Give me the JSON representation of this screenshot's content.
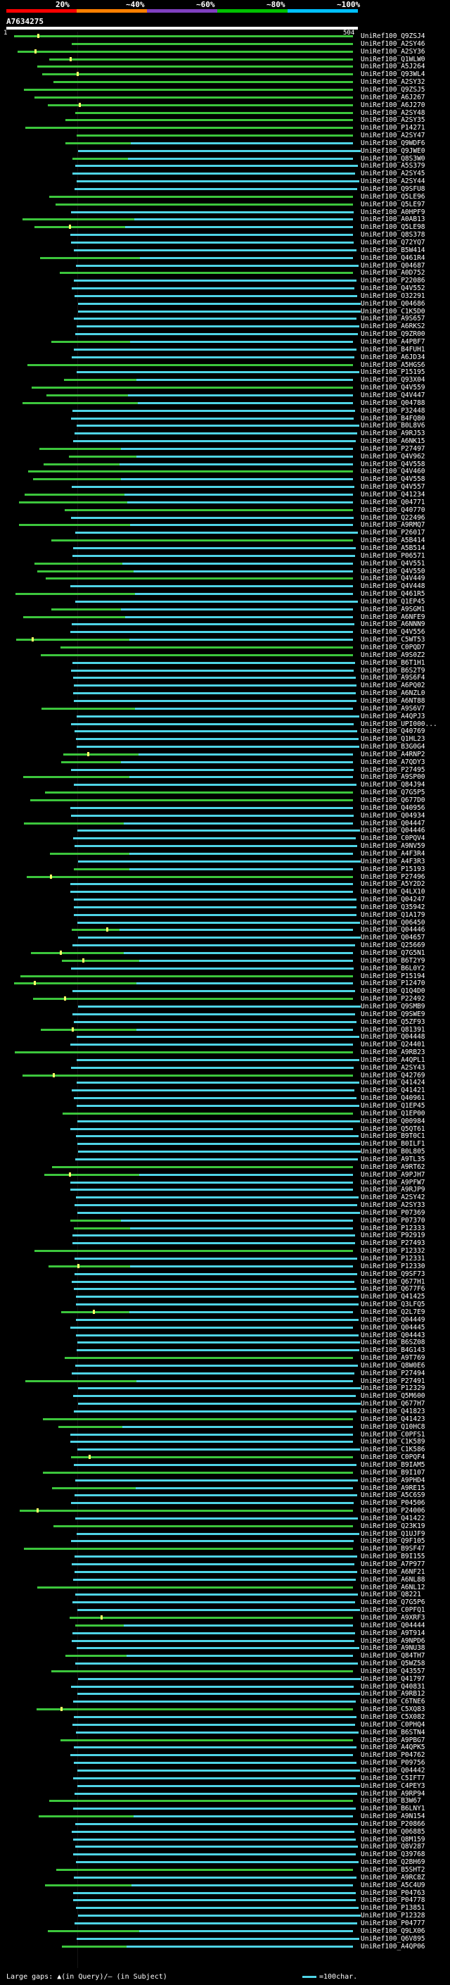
{
  "header": {
    "labels": [
      "20%",
      "~40%",
      "~60%",
      "~80%",
      "~100%"
    ],
    "colors": [
      "#ff0000",
      "#ff8000",
      "#8040c0",
      "#00c000",
      "#00c0ff"
    ]
  },
  "title": "A7634275",
  "scale": {
    "start": "1",
    "end": "504"
  },
  "colors": {
    "cyan": "#4fd4e6",
    "green": "#3cc63c",
    "darkgreen": "#2a8c2a"
  },
  "hits": [
    "UniRef100_Q9ZSJ4",
    "UniRef100_A2SY46",
    "UniRef100_A2SY36",
    "UniRef100_Q1WLW0",
    "UniRef100_A5J264",
    "UniRef100_Q93WL4",
    "UniRef100_A2SY32",
    "UniRef100_Q9ZSJ5",
    "UniRef100_A6J267",
    "UniRef100_A6J270",
    "UniRef100_A2SY48",
    "UniRef100_A2SY35",
    "UniRef100_P14271",
    "UniRef100_A2SY47",
    "UniRef100_Q9WDF6",
    "UniRef100_Q9JWE0",
    "UniRef100_Q8S3W0",
    "UniRef100_A5S379",
    "UniRef100_A2SY45",
    "UniRef100_A2SY44",
    "UniRef100_Q9SFU8",
    "UniRef100_Q5LE96",
    "UniRef100_Q5LE97",
    "UniRef100_A0HPF9",
    "UniRef100_A0AB13",
    "UniRef100_Q5LE98",
    "UniRef100_Q8S378",
    "UniRef100_Q72YQ7",
    "UniRef100_B5W414",
    "UniRef100_Q461R4",
    "UniRef100_Q04687",
    "UniRef100_A0D752",
    "UniRef100_P22086",
    "UniRef100_Q4V552",
    "UniRef100_O32291",
    "UniRef100_Q04686",
    "UniRef100_C1K5D0",
    "UniRef100_A9S657",
    "UniRef100_A6RKS2",
    "UniRef100_Q9ZR00",
    "UniRef100_A4PBF7",
    "UniRef100_B4FUH1",
    "UniRef100_A6JD34",
    "UniRef100_A5HGS6",
    "UniRef100_P15195",
    "UniRef100_Q93X04",
    "UniRef100_Q4V559",
    "UniRef100_Q4V447",
    "UniRef100_Q04788",
    "UniRef100_P32448",
    "UniRef100_B4FQ80",
    "UniRef100_B0L8V6",
    "UniRef100_A9RJ53",
    "UniRef100_A6NK15",
    "UniRef100_P27497",
    "UniRef100_Q4V962",
    "UniRef100_Q4V558",
    "UniRef100_Q4V460",
    "UniRef100_Q4V558",
    "UniRef100_Q4V557",
    "UniRef100_Q41234",
    "UniRef100_Q04771",
    "UniRef100_Q40770",
    "UniRef100_Q22496",
    "UniRef100_A9RMQ7",
    "UniRef100_P26017",
    "UniRef100_A5B414",
    "UniRef100_A5B514",
    "UniRef100_P06571",
    "UniRef100_Q4V551",
    "UniRef100_Q4V550",
    "UniRef100_Q4V449",
    "UniRef100_Q4V448",
    "UniRef100_Q461R5",
    "UniRef100_Q1EP45",
    "UniRef100_A9SGM1",
    "UniRef100_A6NFE9",
    "UniRef100_A6NNN9",
    "UniRef100_Q4V556",
    "UniRef100_C5WT53",
    "UniRef100_C0PQD7",
    "UniRef100_A9S0Z2",
    "UniRef100_B6T1H1",
    "UniRef100_B6S2T9",
    "UniRef100_A9S6F4",
    "UniRef100_A6PQ02",
    "UniRef100_A6NZL0",
    "UniRef100_A6NT88",
    "UniRef100_A9S6V7",
    "UniRef100_A4QPJ3",
    "UniRef100_UPI000...",
    "UniRef100_Q40769",
    "UniRef100_Q1HL23",
    "UniRef100_B3G0G4",
    "UniRef100_A4RNP2",
    "UniRef100_A7QDY3",
    "UniRef100_P27495",
    "UniRef100_A9SP00",
    "UniRef100_Q84J94",
    "UniRef100_Q7G5P5",
    "UniRef100_Q677D0",
    "UniRef100_Q40956",
    "UniRef100_Q04934",
    "UniRef100_Q04447",
    "UniRef100_Q04446",
    "UniRef100_C0PQV4",
    "UniRef100_A9NV59",
    "UniRef100_A4F3R4",
    "UniRef100_A4F3R3",
    "UniRef100_P15193",
    "UniRef100_P27496",
    "UniRef100_A5Y2D2",
    "UniRef100_Q4LX10",
    "UniRef100_Q04247",
    "UniRef100_Q35942",
    "UniRef100_Q1A179",
    "UniRef100_Q06450",
    "UniRef100_Q04446",
    "UniRef100_Q04657",
    "UniRef100_Q25669",
    "UniRef100_Q7G5N1",
    "UniRef100_B6T2Y9",
    "UniRef100_B6L0Y2",
    "UniRef100_P15194",
    "UniRef100_P12470",
    "UniRef100_Q1Q4D0",
    "UniRef100_P22492",
    "UniRef100_Q9SMB9",
    "UniRef100_Q9SWE9",
    "UniRef100_Q5ZF93",
    "UniRef100_Q81391",
    "UniRef100_Q04448",
    "UniRef100_Q24401",
    "UniRef100_A9RB23",
    "UniRef100_A4QPL1",
    "UniRef100_A2SY43",
    "UniRef100_Q42769",
    "UniRef100_Q41424",
    "UniRef100_Q41421",
    "UniRef100_Q40961",
    "UniRef100_Q1EP45",
    "UniRef100_Q1EP00",
    "UniRef100_Q00984",
    "UniRef100_Q5QT61",
    "UniRef100_B9T0C1",
    "UniRef100_B0ILF1",
    "UniRef100_B0L805",
    "UniRef100_A9TL35",
    "UniRef100_A9RT62",
    "UniRef100_A9PJH7",
    "UniRef100_A9PFW7",
    "UniRef100_A9RJP9",
    "UniRef100_A2SY42",
    "UniRef100_A2SY33",
    "UniRef100_P07369",
    "UniRef100_P07370",
    "UniRef100_P12333",
    "UniRef100_P92919",
    "UniRef100_P27493",
    "UniRef100_P12332",
    "UniRef100_P12331",
    "UniRef100_P12330",
    "UniRef100_Q9SF73",
    "UniRef100_Q677H1",
    "UniRef100_Q677F6",
    "UniRef100_Q41425",
    "UniRef100_Q3LFQ5",
    "UniRef100_Q2L7E9",
    "UniRef100_Q04449",
    "UniRef100_Q04445",
    "UniRef100_Q04443",
    "UniRef100_B6SZ08",
    "UniRef100_B4G143",
    "UniRef100_A9T769",
    "UniRef100_Q8W0E6",
    "UniRef100_P27494",
    "UniRef100_P27491",
    "UniRef100_P12329",
    "UniRef100_Q5M600",
    "UniRef100_Q677H7",
    "UniRef100_Q41823",
    "UniRef100_Q41423",
    "UniRef100_Q10HC8",
    "UniRef100_C0PFS1",
    "UniRef100_C1K589",
    "UniRef100_C1K586",
    "UniRef100_C0PQF4",
    "UniRef100_B9IAM5",
    "UniRef100_B9I107",
    "UniRef100_A9PHD4",
    "UniRef100_A9RE15",
    "UniRef100_A5C6S9",
    "UniRef100_P04506",
    "UniRef100_P24006",
    "UniRef100_Q41422",
    "UniRef100_Q23K19",
    "UniRef100_Q1UJF9",
    "UniRef100_Q9F105",
    "UniRef100_B9SF47",
    "UniRef100_B9I155",
    "UniRef100_A7P977",
    "UniRef100_A6NF21",
    "UniRef100_A6NL88",
    "UniRef100_A6NL12",
    "UniRef100_Q8221",
    "UniRef100_Q7G5P6",
    "UniRef100_C0PFQ1",
    "UniRef100_A9XRF3",
    "UniRef100_Q04444",
    "UniRef100_A9T914",
    "UniRef100_A9NPD6",
    "UniRef100_A9NU38",
    "UniRef100_Q84TH7",
    "UniRef100_Q5WZ58",
    "UniRef100_Q43557",
    "UniRef100_Q41797",
    "UniRef100_Q40831",
    "UniRef100_A9RB12",
    "UniRef100_C6TNE6",
    "UniRef100_C5XQ83",
    "UniRef100_C5X082",
    "UniRef100_C0PHQ4",
    "UniRef100_B6STN4",
    "UniRef100_A9PBG7",
    "UniRef100_A4QPK5",
    "UniRef100_P04762",
    "UniRef100_P09756",
    "UniRef100_Q04442",
    "UniRef100_C5IFT7",
    "UniRef100_C4PEY3",
    "UniRef100_A9RP94",
    "UniRef100_B3W67",
    "UniRef100_B6LNY1",
    "UniRef100_A9N154",
    "UniRef100_P20866",
    "UniRef100_Q06885",
    "UniRef100_Q8M159",
    "UniRef100_Q8V287",
    "UniRef100_Q39768",
    "UniRef100_Q2BH69",
    "UniRef100_B5SHT2",
    "UniRef100_A9RC8Z",
    "UniRef100_A5C4U9",
    "UniRef100_P04763",
    "UniRef100_P04778",
    "UniRef100_P13851",
    "UniRef100_P12328",
    "UniRef100_P04777",
    "UniRef100_Q9LX06",
    "UniRef100_Q6V895",
    "UniRef100_A4QP06"
  ],
  "legend": {
    "left": "Large gaps: ▲(in Query)/– (in Subject)",
    "right": "=100char."
  }
}
